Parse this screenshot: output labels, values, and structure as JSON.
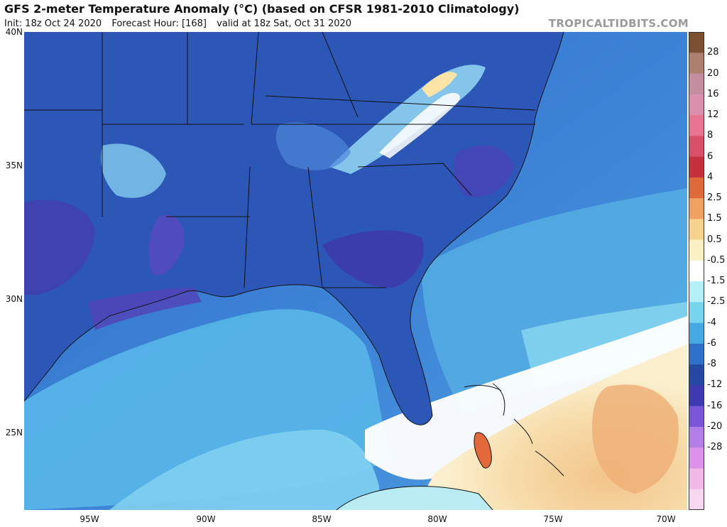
{
  "header": {
    "title": "GFS 2-meter Temperature Anomaly (°C) (based on CFSR 1981-2010 Climatology)",
    "init": "Init: 18z Oct 24 2020",
    "forecast_hour": "Forecast Hour: [168]",
    "valid": "valid at 18z Sat, Oct 31 2020",
    "brand": "TROPICALTIDBITS.COM"
  },
  "axes": {
    "lat_labels": [
      "40N",
      "35N",
      "30N",
      "25N"
    ],
    "lon_labels": [
      "95W",
      "90W",
      "85W",
      "80W",
      "75W",
      "70W"
    ]
  },
  "colorbar": {
    "labels": [
      "28",
      "20",
      "16",
      "12",
      "8",
      "6",
      "4",
      "2.5",
      "1.5",
      "0.5",
      "-0.5",
      "-1.5",
      "-2.5",
      "-4",
      "-6",
      "-8",
      "-12",
      "-16",
      "-20",
      "-28"
    ],
    "colors": [
      "#7a5030",
      "#ad7f6f",
      "#c48ea0",
      "#d990ad",
      "#e87492",
      "#d9506a",
      "#c62f3c",
      "#de6a3a",
      "#eea262",
      "#f6d490",
      "#fbf0c3",
      "#ffffff",
      "#b4f0f5",
      "#76d4ee",
      "#47a9e2",
      "#2f71c9",
      "#2647a2",
      "#3e3ab0",
      "#7a55d5",
      "#b37fe6",
      "#dc92ea",
      "#f1b9e8",
      "#f7d8f0"
    ]
  }
}
